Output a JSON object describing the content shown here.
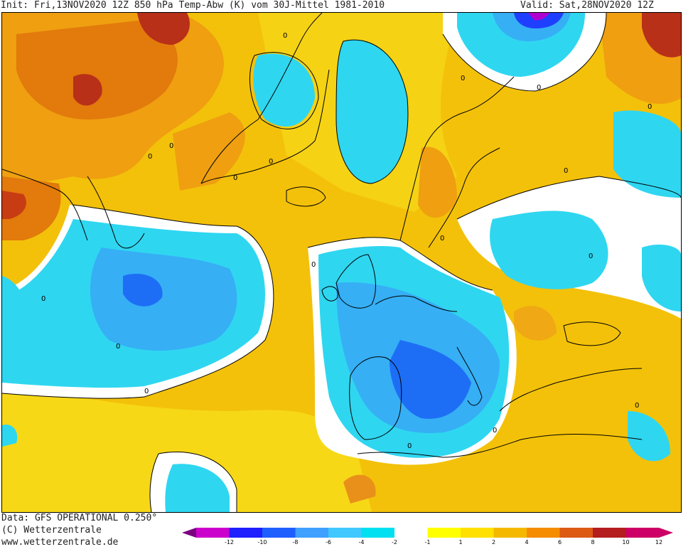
{
  "header": {
    "init_text": "Init: Fri,13NOV2020 12Z 850 hPa Temp-Abw (K) vom 30J-Mittel 1981-2010",
    "valid_text": "Valid: Sat,28NOV2020 12Z"
  },
  "footer": {
    "data_source": "Data: GFS OPERATIONAL 0.250°",
    "copyright": "(C) Wetterzentrale",
    "website": "www.wetterzentrale.de"
  },
  "legend": {
    "ticks": [
      "-12",
      "-10",
      "-8",
      "-6",
      "-4",
      "-2",
      "-1",
      "1",
      "2",
      "4",
      "6",
      "8",
      "10",
      "12"
    ],
    "colors": [
      "#cc00cc",
      "#1f1fff",
      "#1f5fff",
      "#3fa0ff",
      "#40c8ff",
      "#00e0f0",
      "#ffffff",
      "#ffff00",
      "#ffe000",
      "#f5b800",
      "#f58c00",
      "#dc5a14",
      "#b41e1e",
      "#cc0066"
    ]
  },
  "map": {
    "contour_labels": [
      "0",
      "0",
      "0",
      "0",
      "0",
      "0",
      "0",
      "0",
      "0",
      "0",
      "0",
      "0",
      "0",
      "0",
      "0",
      "0",
      "0",
      "0"
    ]
  }
}
